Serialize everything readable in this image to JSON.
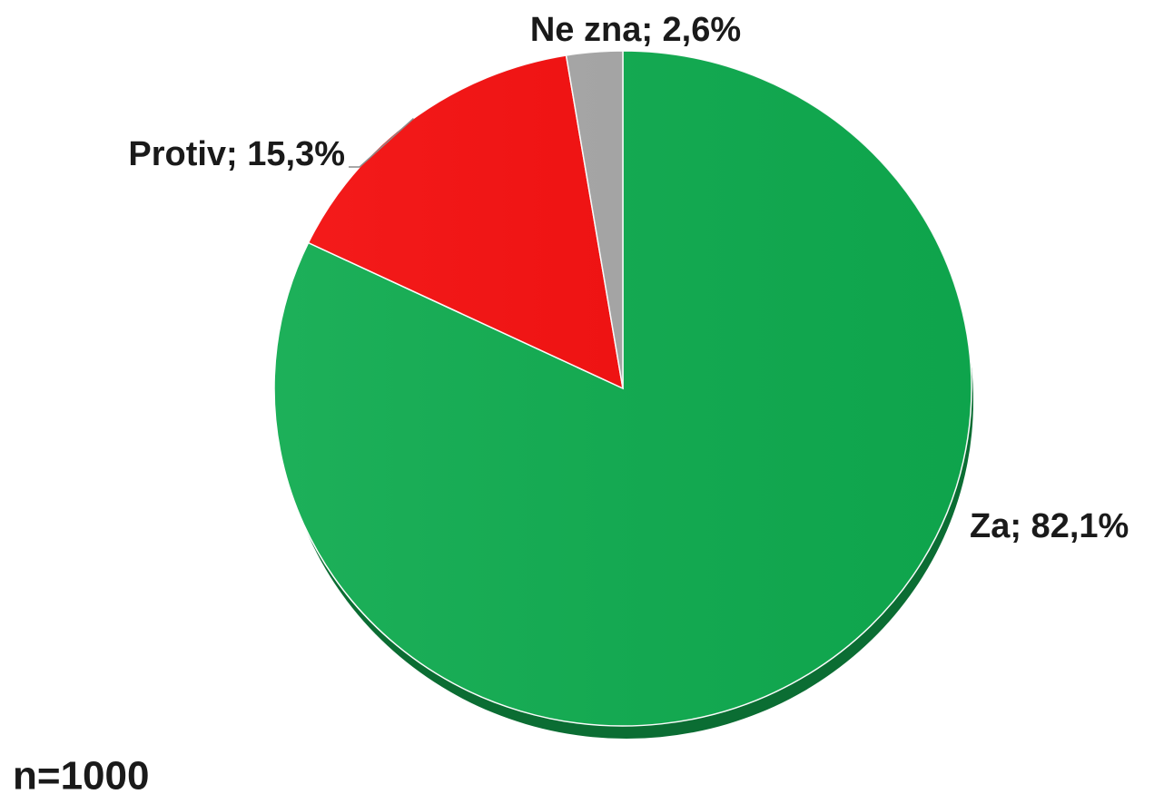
{
  "chart_data": {
    "type": "pie",
    "categories": [
      "Za",
      "Protiv",
      "Ne zna"
    ],
    "values": [
      82.1,
      15.3,
      2.6
    ],
    "value_labels": [
      "Za; 82,1%",
      "Protiv; 15,3%",
      "Ne zna; 2,6%"
    ],
    "colors": [
      "#0fab4f",
      "#f40d0d",
      "#a6a6a6"
    ],
    "annotation": "n=1000"
  }
}
